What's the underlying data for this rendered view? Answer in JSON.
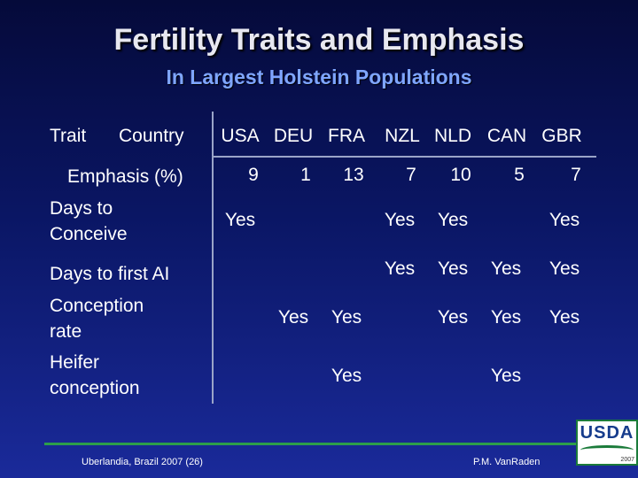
{
  "header": {
    "title": "Fertility Traits and Emphasis",
    "subtitle": "In Largest Holstein Populations"
  },
  "table": {
    "trait_header": "Trait",
    "country_header": "Country",
    "countries": [
      "USA",
      "DEU",
      "FRA",
      "NZL",
      "NLD",
      "CAN",
      "GBR"
    ],
    "emphasis_label": "Emphasis (%)",
    "emphasis_values": [
      "9",
      "1",
      "13",
      "7",
      "10",
      "5",
      "7"
    ],
    "rows": [
      {
        "label_line1": "Days to",
        "label_line2": "Conceive",
        "cells": [
          "Yes",
          "",
          "",
          "Yes",
          "Yes",
          "",
          "Yes"
        ]
      },
      {
        "label_line1": "Days to first AI",
        "label_line2": "",
        "cells": [
          "",
          "",
          "",
          "Yes",
          "Yes",
          "Yes",
          "Yes"
        ]
      },
      {
        "label_line1": "Conception",
        "label_line2": "rate",
        "cells": [
          "",
          "Yes",
          "Yes",
          "",
          "Yes",
          "Yes",
          "Yes"
        ]
      },
      {
        "label_line1": "Heifer",
        "label_line2": "conception",
        "cells": [
          "",
          "",
          "Yes",
          "",
          "",
          "Yes",
          ""
        ]
      }
    ]
  },
  "footer": {
    "left": "Uberlandia, Brazil 2007 (26)",
    "right": "P.M. VanRaden",
    "logo_text": "USDA",
    "logo_year": "2007"
  }
}
